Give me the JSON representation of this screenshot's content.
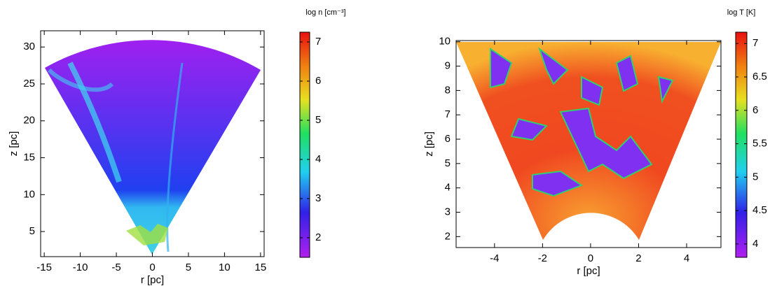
{
  "chart_data": [
    {
      "type": "heatmap",
      "xlabel": "r [pc]",
      "ylabel": "z [pc]",
      "xlim": [
        -15.5,
        15.5
      ],
      "ylim": [
        1.6,
        32.2
      ],
      "xticks": [
        -15,
        -10,
        -5,
        0,
        5,
        10,
        15
      ],
      "yticks": [
        5,
        10,
        15,
        20,
        25,
        30
      ],
      "colorbar": {
        "label": "log n [cm⁻³]",
        "lim": [
          1.5,
          7.25
        ],
        "ticks": [
          2,
          3,
          4,
          5,
          6,
          7
        ]
      }
    },
    {
      "type": "heatmap",
      "xlabel": "r [pc]",
      "ylabel": "z [pc]",
      "xlim": [
        -5.6,
        5.43
      ],
      "ylim": [
        1.55,
        10.05
      ],
      "xticks": [
        -4,
        -2,
        0,
        2,
        4
      ],
      "yticks": [
        2,
        3,
        4,
        5,
        6,
        7,
        8,
        9,
        10
      ],
      "colorbar": {
        "label": "log T [K]",
        "lim": [
          3.8,
          7.17
        ],
        "ticks": [
          4,
          4.5,
          5,
          5.5,
          6,
          6.5,
          7
        ]
      }
    }
  ]
}
